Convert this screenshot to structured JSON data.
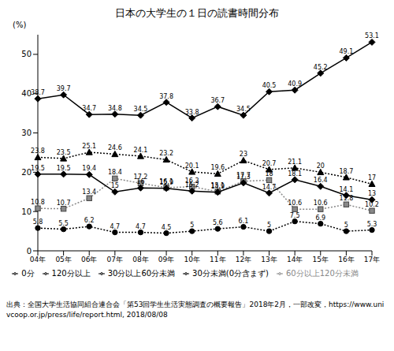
{
  "chart_data": {
    "type": "line",
    "title": "日本の大学生の１日の読書時間分布",
    "y_label": "(%)",
    "categories": [
      "04年",
      "05年",
      "06年",
      "07年",
      "08年",
      "09年",
      "10年",
      "11年",
      "12年",
      "13年",
      "14年",
      "15年",
      "16年",
      "17年"
    ],
    "ylim": [
      0,
      55
    ],
    "yticks": [
      0,
      10,
      20,
      30,
      40,
      50
    ],
    "grid": false,
    "data_labels": true,
    "legend": "bottom",
    "series": [
      {
        "name": "0分",
        "color": "#000000",
        "marker": "diamond",
        "line_style": "solid",
        "values": [
          38.7,
          39.7,
          34.7,
          34.8,
          34.5,
          37.8,
          33.8,
          36.7,
          34.5,
          40.5,
          40.9,
          45.2,
          49.1,
          53.1
        ]
      },
      {
        "name": "30分以上60分未満",
        "color": "#000000",
        "marker": "triangle",
        "line_style": "dotted",
        "values": [
          23.8,
          23.5,
          25.1,
          24.6,
          24.1,
          23.2,
          20.1,
          19.6,
          23.0,
          20.7,
          21.1,
          20.0,
          18.7,
          17.0
        ]
      },
      {
        "name": "60分以上120分未満",
        "color": "#888888",
        "marker": "square",
        "line_style": "dotted",
        "values": [
          10.8,
          10.7,
          13.4,
          18.4,
          17.2,
          16.1,
          16.3,
          15.1,
          17.7,
          18.0,
          10.6,
          10.6,
          11.8,
          10.2
        ]
      },
      {
        "name": "30分未満(0分含まず)",
        "color": "#000000",
        "marker": "diamond",
        "line_style": "solid",
        "values": [
          19.5,
          19.5,
          19.4,
          15.0,
          16.0,
          15.9,
          15.2,
          14.9,
          17.3,
          14.7,
          18.1,
          16.4,
          14.1,
          13.0
        ]
      },
      {
        "name": "120分以上",
        "color": "#000000",
        "marker": "circle",
        "line_style": "dotted",
        "values": [
          5.8,
          5.5,
          6.2,
          4.7,
          4.7,
          4.5,
          5.0,
          5.6,
          6.1,
          5.0,
          7.5,
          6.9,
          5.0,
          5.3
        ]
      }
    ],
    "source": "出典：全国大学生活協同組合連合会「第53回学生生活実態調査の概要報告」2018年2月，一部改変，https://www.univcoop.or.jp/press/life/report.html, 2018/08/08"
  }
}
